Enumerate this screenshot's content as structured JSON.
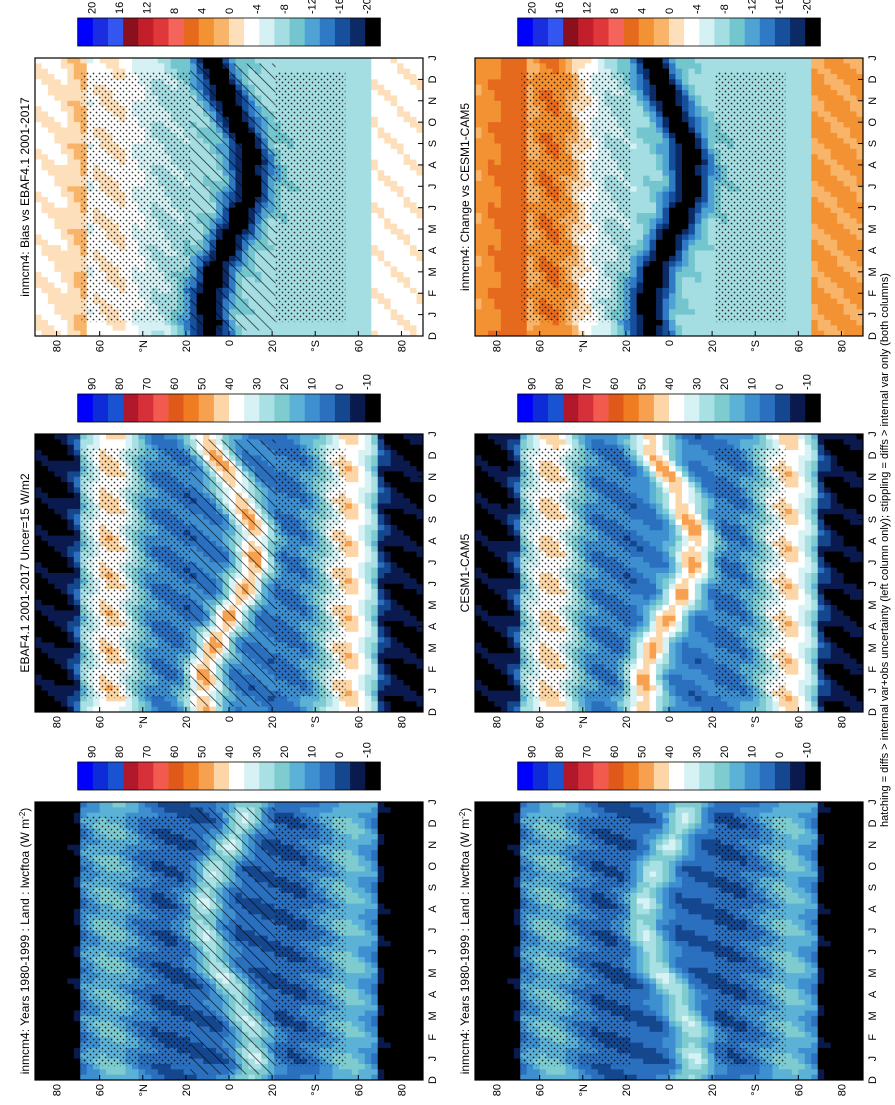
{
  "figure": {
    "footnote": "hatching = diffs > internal var+obs uncertainty (left column only); stippling = diffs > internal var only (both columns)"
  },
  "palettes": {
    "abs": [
      "#0000ff",
      "#0d2bd6",
      "#1a53d2",
      "#b2182b",
      "#d6313b",
      "#f15a4d",
      "#e1591a",
      "#f07c22",
      "#f7a150",
      "#fcd6a6",
      "#ffffff",
      "#d7f2f4",
      "#a9e0e4",
      "#7ecbd0",
      "#5cb2d6",
      "#3e8fd0",
      "#2b6fbf",
      "#15478f",
      "#0a1a4f",
      "#000000"
    ],
    "diff": [
      "#0000ff",
      "#1a2de0",
      "#3355f0",
      "#8b0f1c",
      "#c21f2a",
      "#e0373a",
      "#f5645a",
      "#e66a1e",
      "#f39233",
      "#f8b56a",
      "#fde0bb",
      "#ffffff",
      "#d5f1f3",
      "#a4dde2",
      "#73c5ce",
      "#4ea2d4",
      "#2e7ac5",
      "#164f9c",
      "#0b2a66",
      "#000000"
    ],
    "hatch_color": "#000000"
  },
  "chart_data": [
    {
      "id": "top-left",
      "type": "heatmap",
      "title": "inmcm4: Years 1980-1999 : Land : lwcftoa (W m",
      "title_sup": "-2",
      "title_end": ")",
      "x": [
        "D",
        "J",
        "F",
        "M",
        "A",
        "M",
        "J",
        "J",
        "A",
        "S",
        "O",
        "N",
        "D",
        "J"
      ],
      "y_ticks": [
        "80",
        "60",
        "°N",
        "20",
        "0",
        "20",
        "°S",
        "60",
        "80"
      ],
      "colorbar": {
        "labels": [
          "90",
          "80",
          "70",
          "60",
          "50",
          "40",
          "30",
          "20",
          "10",
          "0",
          "-10"
        ],
        "palette": "abs"
      },
      "hatching": true,
      "stippling": true
    },
    {
      "id": "top-right",
      "type": "heatmap",
      "title": "inmcm4: Years 1980-1999 : Land : lwcftoa (W m",
      "title_sup": "-2",
      "title_end": ")",
      "x": [
        "D",
        "J",
        "F",
        "M",
        "A",
        "M",
        "J",
        "J",
        "A",
        "S",
        "O",
        "N",
        "D",
        "J"
      ],
      "y_ticks": [
        "80",
        "60",
        "°N",
        "20",
        "0",
        "20",
        "°S",
        "60",
        "80"
      ],
      "colorbar": {
        "labels": [
          "90",
          "80",
          "70",
          "60",
          "50",
          "40",
          "30",
          "20",
          "10",
          "0",
          "-10"
        ],
        "palette": "abs"
      },
      "hatching": false,
      "stippling": true
    },
    {
      "id": "middle-left",
      "type": "heatmap",
      "title": "EBAF4.1 2001-2017 Uncer=15 W/m2",
      "title_sup": "",
      "title_end": "",
      "x": [
        "D",
        "J",
        "F",
        "M",
        "A",
        "M",
        "J",
        "J",
        "A",
        "S",
        "O",
        "N",
        "D",
        "J"
      ],
      "y_ticks": [
        "80",
        "60",
        "°N",
        "20",
        "0",
        "20",
        "°S",
        "60",
        "80"
      ],
      "colorbar": {
        "labels": [
          "90",
          "80",
          "70",
          "60",
          "50",
          "40",
          "30",
          "20",
          "10",
          "0",
          "-10"
        ],
        "palette": "abs"
      },
      "hatching": true,
      "stippling": true
    },
    {
      "id": "middle-right",
      "type": "heatmap",
      "title": "CESM1-CAM5",
      "title_sup": "",
      "title_end": "",
      "x": [
        "D",
        "J",
        "F",
        "M",
        "A",
        "M",
        "J",
        "J",
        "A",
        "S",
        "O",
        "N",
        "D",
        "J"
      ],
      "y_ticks": [
        "80",
        "60",
        "°N",
        "20",
        "0",
        "20",
        "°S",
        "60",
        "80"
      ],
      "colorbar": {
        "labels": [
          "90",
          "80",
          "70",
          "60",
          "50",
          "40",
          "30",
          "20",
          "10",
          "0",
          "-10"
        ],
        "palette": "abs"
      },
      "hatching": false,
      "stippling": true
    },
    {
      "id": "bottom-left",
      "type": "heatmap",
      "title": "inmcm4: Bias vs EBAF4.1 2001-2017",
      "title_sup": "",
      "title_end": "",
      "x": [
        "D",
        "J",
        "F",
        "M",
        "A",
        "M",
        "J",
        "J",
        "A",
        "S",
        "O",
        "N",
        "D",
        "J"
      ],
      "y_ticks": [
        "80",
        "60",
        "°N",
        "20",
        "0",
        "20",
        "°S",
        "60",
        "80"
      ],
      "colorbar": {
        "labels": [
          "20",
          "16",
          "12",
          "8",
          "4",
          "0",
          "-4",
          "-8",
          "-12",
          "-16",
          "-20"
        ],
        "palette": "diff"
      },
      "hatching": true,
      "stippling": true
    },
    {
      "id": "bottom-right",
      "type": "heatmap",
      "title": "inmcm4: Change vs CESM1-CAM5",
      "title_sup": "",
      "title_end": "",
      "x": [
        "D",
        "J",
        "F",
        "M",
        "A",
        "M",
        "J",
        "J",
        "A",
        "S",
        "O",
        "N",
        "D",
        "J"
      ],
      "y_ticks": [
        "80",
        "60",
        "°N",
        "20",
        "0",
        "20",
        "°S",
        "60",
        "80"
      ],
      "colorbar": {
        "labels": [
          "20",
          "16",
          "12",
          "8",
          "4",
          "0",
          "-4",
          "-8",
          "-12",
          "-16",
          "-20"
        ],
        "palette": "diff"
      },
      "hatching": false,
      "stippling": true
    }
  ]
}
